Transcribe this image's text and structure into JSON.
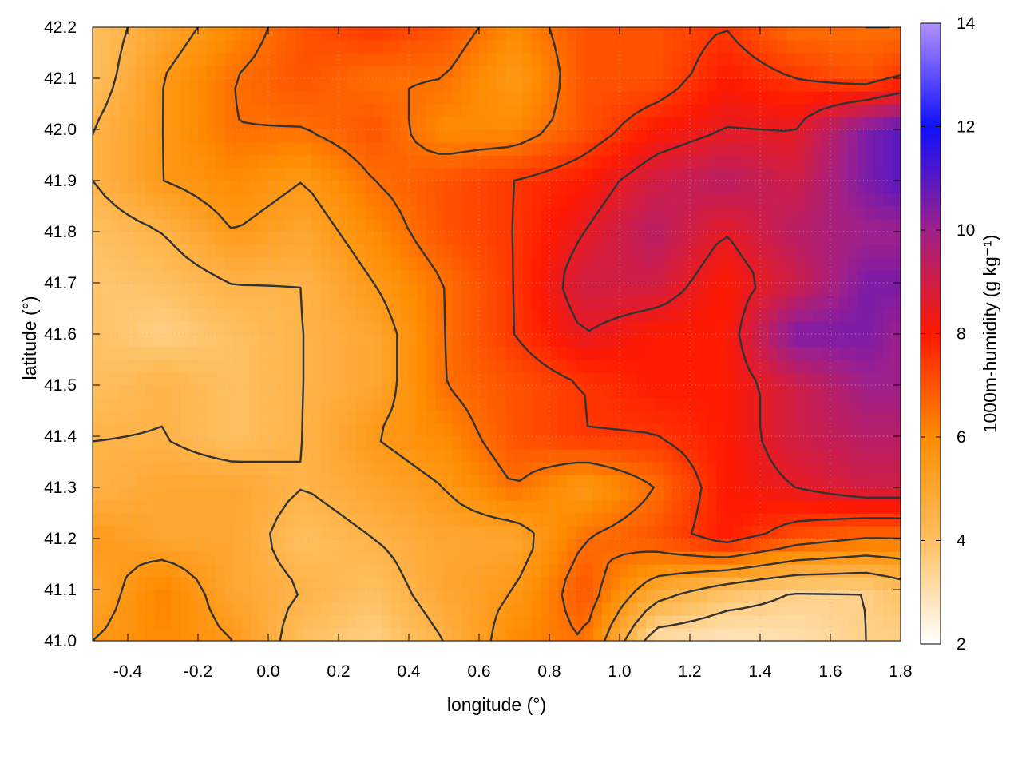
{
  "chart_data": {
    "type": "heatmap",
    "xlabel": "longitude (°)",
    "ylabel": "latitude (°)",
    "colorbar_label": "1000m-humidity (g kg⁻¹)",
    "xlim": [
      -0.5,
      1.8
    ],
    "ylim": [
      41.0,
      42.2
    ],
    "xticks": [
      -0.4,
      -0.2,
      0.0,
      0.2,
      0.4,
      0.6,
      0.8,
      1.0,
      1.2,
      1.4,
      1.6,
      1.8
    ],
    "xtick_labels": [
      "-0.4",
      "-0.2",
      "0.0",
      "0.2",
      "0.4",
      "0.6",
      "0.8",
      "1.0",
      "1.2",
      "1.4",
      "1.6",
      "1.8"
    ],
    "yticks": [
      41.0,
      41.1,
      41.2,
      41.3,
      41.4,
      41.5,
      41.6,
      41.7,
      41.8,
      41.9,
      42.0,
      42.1,
      42.2
    ],
    "ytick_labels": [
      "41.0",
      "41.1",
      "41.2",
      "41.3",
      "41.4",
      "41.5",
      "41.6",
      "41.7",
      "41.8",
      "41.9",
      "42.0",
      "42.1",
      "42.2"
    ],
    "colorbar_range": [
      2,
      14
    ],
    "colorbar_ticks": [
      2,
      4,
      6,
      8,
      10,
      12,
      14
    ],
    "colorbar_tick_labels": [
      "2",
      "4",
      "6",
      "8",
      "10",
      "12",
      "14"
    ],
    "colormap": [
      {
        "value": 2,
        "color": "#ffffff"
      },
      {
        "value": 4,
        "color": "#ffc060"
      },
      {
        "value": 6,
        "color": "#ff8c00"
      },
      {
        "value": 8,
        "color": "#ff1a00"
      },
      {
        "value": 10,
        "color": "#a0208a"
      },
      {
        "value": 12,
        "color": "#1010ff"
      },
      {
        "value": 14,
        "color": "#b090ff"
      }
    ],
    "contour_color": "#333333",
    "grid": true,
    "lon": [
      -0.5,
      -0.3,
      -0.1,
      0.1,
      0.3,
      0.5,
      0.7,
      0.9,
      1.1,
      1.3,
      1.5,
      1.7,
      1.8
    ],
    "lat": [
      41.0,
      41.1,
      41.2,
      41.3,
      41.4,
      41.5,
      41.6,
      41.7,
      41.8,
      41.9,
      42.0,
      42.1,
      42.2
    ],
    "humidity": [
      [
        5.5,
        6.0,
        5.5,
        4.0,
        3.5,
        4.5,
        6.0,
        6.5,
        3.0,
        2.8,
        3.0,
        3.5,
        3.5
      ],
      [
        5.0,
        6.2,
        5.0,
        4.5,
        4.0,
        5.0,
        5.5,
        7.0,
        5.0,
        4.0,
        3.5,
        3.5,
        4.0
      ],
      [
        5.5,
        5.0,
        5.0,
        4.0,
        4.5,
        5.0,
        5.0,
        6.5,
        7.0,
        8.0,
        7.0,
        6.5,
        6.5
      ],
      [
        4.5,
        5.0,
        5.0,
        4.5,
        5.0,
        5.5,
        6.5,
        5.5,
        6.5,
        8.0,
        8.5,
        9.0,
        9.0
      ],
      [
        4.5,
        4.5,
        4.0,
        4.5,
        5.5,
        6.0,
        7.0,
        7.5,
        7.5,
        8.0,
        9.0,
        9.5,
        9.5
      ],
      [
        4.0,
        4.5,
        4.0,
        4.5,
        5.0,
        6.5,
        7.0,
        7.5,
        8.0,
        8.0,
        9.0,
        10.0,
        10.0
      ],
      [
        4.0,
        3.5,
        4.0,
        4.5,
        5.0,
        6.5,
        7.5,
        8.5,
        8.0,
        8.0,
        10.5,
        10.5,
        10.0
      ],
      [
        3.8,
        4.0,
        4.5,
        4.5,
        5.5,
        6.5,
        7.5,
        9.0,
        9.0,
        8.0,
        9.0,
        10.5,
        10.5
      ],
      [
        4.0,
        4.5,
        5.5,
        5.0,
        6.0,
        7.0,
        7.5,
        8.5,
        9.5,
        8.5,
        9.5,
        10.0,
        10.0
      ],
      [
        4.5,
        5.5,
        6.0,
        5.5,
        6.5,
        7.0,
        7.5,
        8.0,
        9.0,
        9.5,
        9.0,
        10.5,
        11.0
      ],
      [
        4.5,
        5.5,
        6.5,
        6.5,
        7.0,
        6.0,
        6.0,
        7.0,
        8.0,
        8.5,
        8.5,
        10.5,
        11.0
      ],
      [
        4.0,
        5.5,
        6.5,
        7.0,
        6.5,
        6.5,
        5.5,
        7.0,
        7.0,
        8.0,
        7.5,
        7.0,
        7.5
      ],
      [
        4.0,
        5.0,
        6.0,
        7.0,
        7.5,
        7.0,
        6.0,
        7.0,
        7.0,
        7.5,
        6.5,
        6.5,
        6.5
      ]
    ],
    "contour_levels": [
      3.5,
      4.5,
      5.5,
      6.5,
      7.5,
      8.5
    ]
  }
}
